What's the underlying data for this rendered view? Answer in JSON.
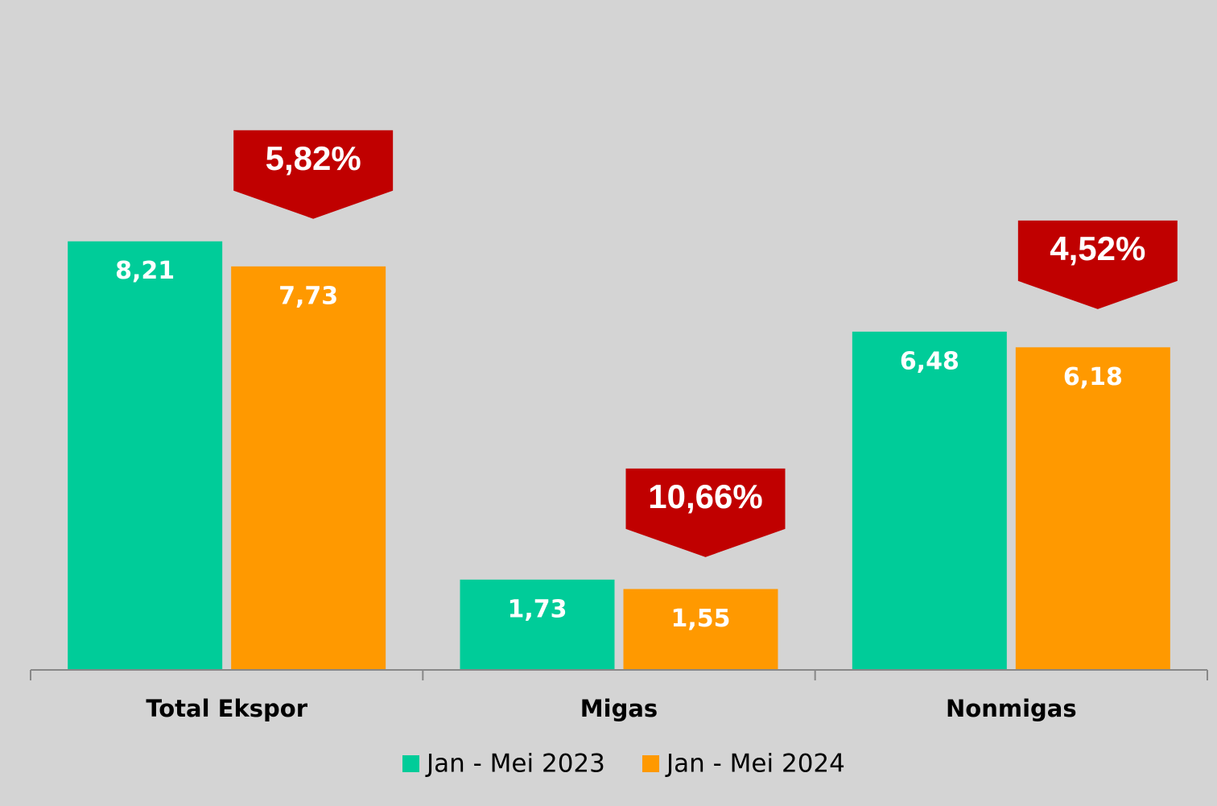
{
  "chart_data": {
    "type": "bar",
    "categories": [
      "Total Ekspor",
      "Migas",
      "Nonmigas"
    ],
    "series": [
      {
        "name": "Jan - Mei 2023",
        "color": "#00cc99",
        "values": [
          8.21,
          1.73,
          6.48
        ],
        "value_labels": [
          "8,21",
          "1,73",
          "6,48"
        ]
      },
      {
        "name": "Jan - Mei 2024",
        "color": "#ff9900",
        "values": [
          7.73,
          1.55,
          6.18
        ],
        "value_labels": [
          "7,73",
          "1,55",
          "6,18"
        ]
      }
    ],
    "annotations": [
      "5,82%",
      "10,66%",
      "4,52%"
    ],
    "annotation_color": "#c00000",
    "ylim": [
      0,
      12
    ],
    "legend": "bottom"
  }
}
